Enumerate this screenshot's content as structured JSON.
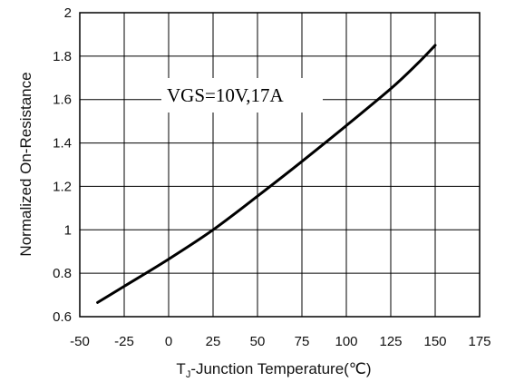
{
  "chart_data": {
    "type": "line",
    "title": "",
    "xlabel": "T",
    "xlabel_sub": "J",
    "xlabel_rest": "-Junction Temperature(℃)",
    "ylabel": "Normalized On-Resistance",
    "xlim": [
      -50,
      175
    ],
    "ylim": [
      0.6,
      2.0
    ],
    "xticks": [
      "-50",
      "-25",
      "0",
      "25",
      "50",
      "75",
      "100",
      "125",
      "150",
      "175"
    ],
    "yticks": [
      "0.6",
      "0.8",
      "1",
      "1.2",
      "1.4",
      "1.6",
      "1.8",
      "2"
    ],
    "grid": true,
    "annotation": "VGS=10V,17A",
    "series": [
      {
        "x": [
          -40,
          -25,
          0,
          25,
          50,
          75,
          100,
          125,
          140,
          150
        ],
        "y": [
          0.665,
          0.74,
          0.865,
          1.0,
          1.155,
          1.315,
          1.48,
          1.65,
          1.765,
          1.85
        ]
      }
    ]
  }
}
